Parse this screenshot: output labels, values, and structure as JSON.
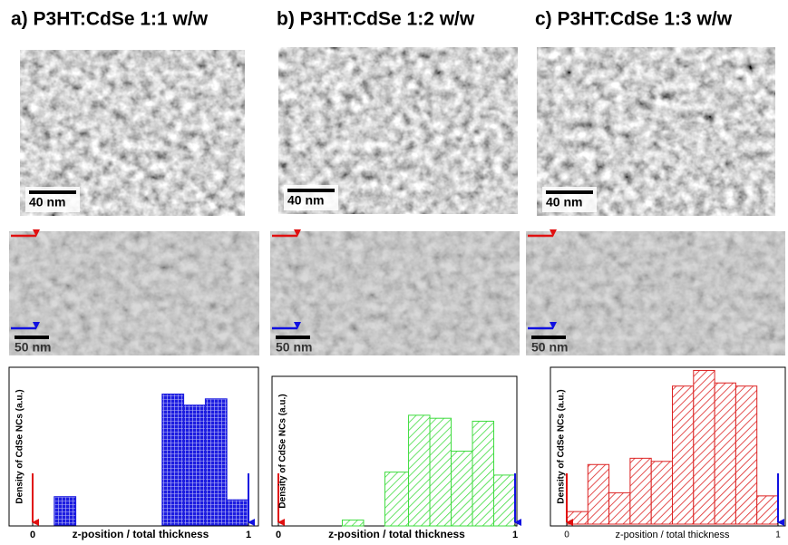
{
  "chart_data": [
    {
      "type": "histogram",
      "title": "a) P3HT:CdSe  1:1 w/w",
      "annotations": [
        "40 nm",
        "50 nm"
      ],
      "xlabel": "z-position / total thickness",
      "ylabel": "Density of CdSe NCs (a.u.)",
      "bins": [
        0,
        0.1,
        0.2,
        0.3,
        0.4,
        0.5,
        0.6,
        0.7,
        0.8,
        0.9,
        1.0
      ],
      "values": [
        0,
        18,
        0,
        0,
        0,
        0,
        83,
        76,
        80,
        16
      ],
      "color": "#1c1ce0",
      "hatch": "grid",
      "xlim": [
        0,
        1
      ],
      "xticks": [
        0,
        1
      ],
      "ylim": [
        0,
        100
      ]
    },
    {
      "type": "histogram",
      "title": "b) P3HT:CdSe  1:2 w/w",
      "annotations": [
        "40 nm",
        "50 nm"
      ],
      "xlabel": "z-position / total thickness",
      "ylabel": "Density of CdSe NCs (a.u.)",
      "bins": [
        0,
        0.09,
        0.18,
        0.27,
        0.36,
        0.45,
        0.55,
        0.64,
        0.73,
        0.82,
        0.91,
        1.0
      ],
      "values": [
        0,
        0,
        0,
        4,
        0,
        36,
        74,
        72,
        50,
        70,
        34
      ],
      "color": "#3fdc3f",
      "hatch": "diagonal",
      "xlim": [
        0,
        1
      ],
      "xticks": [
        0,
        1
      ],
      "ylim": [
        0,
        100
      ]
    },
    {
      "type": "histogram",
      "title": "c) P3HT:CdSe  1:3 w/w",
      "annotations": [
        "40 nm",
        "50 nm"
      ],
      "xlabel": "z-position / total thickness",
      "ylabel": "Density of CdSe NCs (a.u.)",
      "bins": [
        0,
        0.1,
        0.2,
        0.3,
        0.4,
        0.5,
        0.6,
        0.7,
        0.8,
        0.9,
        1.0
      ],
      "values": [
        8,
        38,
        20,
        42,
        40,
        88,
        98,
        90,
        88,
        18
      ],
      "color": "#dd2222",
      "hatch": "diagonal",
      "xlim": [
        0,
        1
      ],
      "xticks": [
        0,
        1
      ],
      "ylim": [
        0,
        100
      ]
    }
  ]
}
